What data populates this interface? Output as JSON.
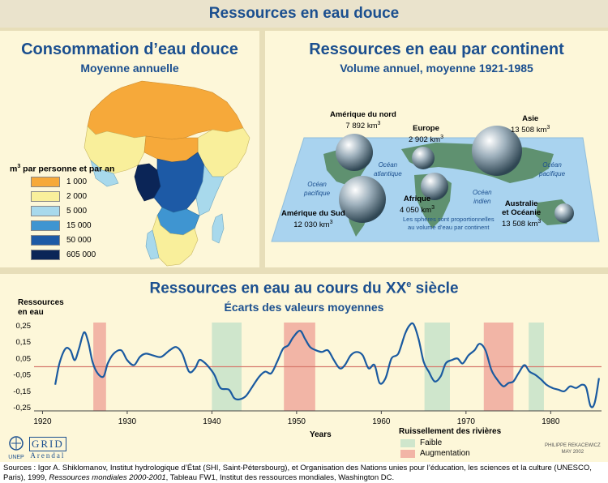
{
  "banner_title": "Ressources en eau douce",
  "left_panel": {
    "title": "Consommation d’eau douce",
    "subtitle": "Moyenne annuelle",
    "legend_title_pre": "m",
    "legend_title_sup": "3",
    "legend_title_post": " par personne et par an",
    "legend": [
      {
        "label": "1 000",
        "color": "#f6a93a"
      },
      {
        "label": "2 000",
        "color": "#f9ef9b"
      },
      {
        "label": "5 000",
        "color": "#a8d9ec"
      },
      {
        "label": "15 000",
        "color": "#3f95d1"
      },
      {
        "label": "50 000",
        "color": "#1d5aa6"
      },
      {
        "label": "605 000",
        "color": "#0b2557"
      }
    ]
  },
  "right_panel": {
    "title": "Ressources en eau par continent",
    "subtitle": "Volume annuel, moyenne 1921-1985",
    "continents": [
      {
        "name": "Amérique du nord",
        "value": "7 892 km",
        "sup": "3"
      },
      {
        "name": "Europe",
        "value": "2 902 km",
        "sup": "3"
      },
      {
        "name": "Asie",
        "value": "13 508 km",
        "sup": "3"
      },
      {
        "name": "Afrique",
        "value": "4 050 km",
        "sup": "3"
      },
      {
        "name": "Amérique du Sud",
        "value": "12 030 km",
        "sup": "3"
      },
      {
        "name": "Australie",
        "name2": "et Océanie",
        "value": "13 508 km",
        "sup": "3"
      }
    ],
    "oceans": {
      "pacific_left_1": "Océan",
      "pacific_left_2": "pacifique",
      "atlantic_1": "Océan",
      "atlantic_2": "atlantique",
      "indian_1": "Océan",
      "indian_2": "indien",
      "pacific_right_1": "Océan",
      "pacific_right_2": "pacifique"
    },
    "note_1": "Les sphères sont proportionnelles",
    "note_2": "au volume d’eau par continent"
  },
  "bottom_panel": {
    "title_pre": "Ressources en eau au cours du ",
    "title_xx": "XX",
    "title_sup": "e",
    "title_post": " siècle",
    "subtitle": "Écarts des valeurs moyennes",
    "legend_title": "Ruissellement des rivières",
    "legend_low": "Faible",
    "legend_high": "Augmentation",
    "low_color": "#cfe6cc",
    "high_color": "#f2b5a6"
  },
  "credit": "PHILIPPE REKACEWICZ",
  "credit_date": "MAY 2002",
  "logos": {
    "unep": "UNEP",
    "grid": "GRID",
    "arendal": "Arendal"
  },
  "sources": {
    "part1": "Sources : Igor A. Shiklomanov, Institut hydrologique d’État (SHI, Saint-Pétersbourg), et Organisation des Nations unies pour l’éducation, les sciences et la culture (UNESCO, Paris), 1999, ",
    "italic": "Ressources mondiales 2000-2001",
    "part2": ", Tableau FW1, Institut des ressources mondiales, Washington DC."
  },
  "chart_data": {
    "type": "line",
    "title": "Ressources en eau au cours du XXe siècle",
    "subtitle": "Écarts des valeurs moyennes",
    "xlabel": "Years",
    "ylabel": "Ressources en eau",
    "xlim": [
      1919,
      1986
    ],
    "ylim": [
      -0.27,
      0.27
    ],
    "xticks": [
      1920,
      1930,
      1940,
      1950,
      1960,
      1970,
      1980
    ],
    "yticks": [
      0.25,
      0.15,
      0.05,
      -0.05,
      -0.15,
      -0.25
    ],
    "ytick_labels": [
      "0,25",
      "0,15",
      "0,05",
      "-0,05",
      "-0,15",
      "-0,25"
    ],
    "reference_line": 0,
    "series": [
      {
        "x": [
          1921.5,
          1922,
          1922.7,
          1923.3,
          1923.8,
          1924.3,
          1924.9,
          1925.4,
          1925.9,
          1926.5,
          1927.2,
          1927.7,
          1928.4,
          1929.3,
          1930,
          1930.8,
          1931.5,
          1932.2,
          1933,
          1934,
          1935,
          1935.8,
          1936.5,
          1937.3,
          1938,
          1938.5,
          1939,
          1939.6,
          1940.3,
          1941,
          1942,
          1942.6,
          1943.2,
          1944,
          1944.8,
          1945.6,
          1946.3,
          1947,
          1947.7,
          1948.4,
          1949,
          1949.6,
          1950.4,
          1951,
          1951.6,
          1952.3,
          1953,
          1953.7,
          1954.4,
          1955.1,
          1955.7,
          1956.4,
          1957.1,
          1957.8,
          1958.5,
          1959.2,
          1959.8,
          1960.5,
          1961.2,
          1962,
          1962.8,
          1963.3,
          1963.8,
          1964.4,
          1965,
          1965.6,
          1966.3,
          1967,
          1967.6,
          1968.3,
          1969,
          1969.6,
          1970.3,
          1971,
          1971.6,
          1972.3,
          1973,
          1973.7,
          1974.4,
          1975,
          1975.6,
          1976.2,
          1976.9,
          1977.5,
          1978.2,
          1978.9,
          1979.5,
          1980.2,
          1980.9,
          1981.6,
          1982.3,
          1983,
          1983.7,
          1984.2,
          1984.7,
          1985.2,
          1985.7
        ],
        "y": [
          -0.11,
          0.02,
          0.11,
          0.1,
          0.04,
          0.11,
          0.21,
          0.15,
          0.03,
          -0.04,
          -0.06,
          0.02,
          0.08,
          0.1,
          0.04,
          0.01,
          0.06,
          0.08,
          0.07,
          0.06,
          0.1,
          0.12,
          0.08,
          -0.03,
          -0.01,
          0.04,
          0.03,
          0.0,
          -0.05,
          -0.13,
          -0.14,
          -0.19,
          -0.2,
          -0.18,
          -0.12,
          -0.06,
          -0.03,
          -0.04,
          0.03,
          0.11,
          0.13,
          0.18,
          0.22,
          0.17,
          0.12,
          0.1,
          0.09,
          0.1,
          0.04,
          -0.01,
          0.01,
          0.07,
          0.09,
          0.07,
          -0.01,
          0.01,
          -0.1,
          -0.07,
          0.05,
          0.08,
          0.2,
          0.25,
          0.26,
          0.17,
          0.03,
          -0.03,
          -0.09,
          -0.06,
          0.02,
          0.04,
          0.05,
          0.02,
          0.07,
          0.1,
          0.14,
          0.1,
          -0.02,
          -0.08,
          -0.12,
          -0.1,
          -0.09,
          -0.04,
          0.01,
          -0.03,
          -0.05,
          -0.08,
          -0.11,
          -0.13,
          -0.14,
          -0.15,
          -0.12,
          -0.13,
          -0.11,
          -0.13,
          -0.24,
          -0.22,
          -0.07
        ]
      }
    ],
    "shaded_bands": [
      {
        "from": 1926,
        "to": 1927.5,
        "type": "Augmentation"
      },
      {
        "from": 1940,
        "to": 1943.5,
        "type": "Faible"
      },
      {
        "from": 1948.5,
        "to": 1952.2,
        "type": "Augmentation"
      },
      {
        "from": 1965.1,
        "to": 1968.1,
        "type": "Faible"
      },
      {
        "from": 1972.1,
        "to": 1975.6,
        "type": "Augmentation"
      },
      {
        "from": 1977.4,
        "to": 1979.2,
        "type": "Faible"
      }
    ]
  }
}
